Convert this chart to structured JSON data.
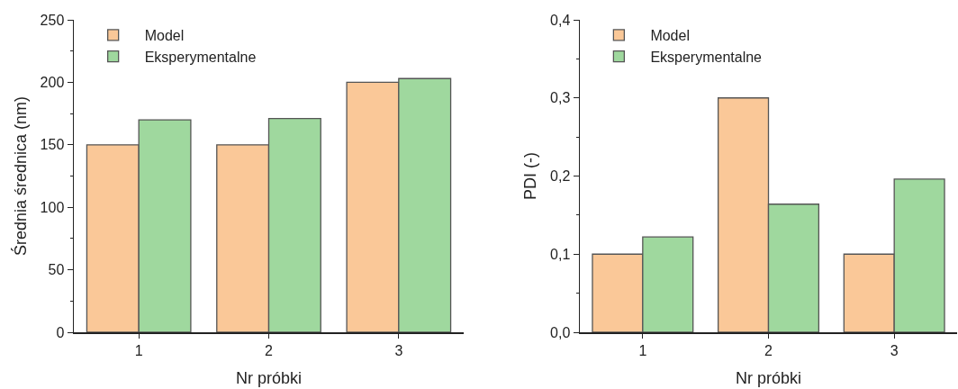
{
  "chart_data": [
    {
      "type": "bar",
      "xlabel": "Nr próbki",
      "ylabel": "Średnia średnica (nm)",
      "categories": [
        "1",
        "2",
        "3"
      ],
      "series": [
        {
          "name": "Model",
          "color": "#fac898",
          "values": [
            150,
            150,
            200
          ]
        },
        {
          "name": "Eksperymentalne",
          "color": "#9fd89e",
          "values": [
            170,
            171,
            203
          ]
        }
      ],
      "ylim": [
        0,
        250
      ],
      "yticks": [
        0,
        50,
        100,
        150,
        200,
        250
      ],
      "grid": false,
      "legend": "top left"
    },
    {
      "type": "bar",
      "xlabel": "Nr próbki",
      "ylabel": "PDI (-)",
      "categories": [
        "1",
        "2",
        "3"
      ],
      "series": [
        {
          "name": "Model",
          "color": "#fac898",
          "values": [
            0.1,
            0.3,
            0.1
          ]
        },
        {
          "name": "Eksperymentalne",
          "color": "#9fd89e",
          "values": [
            0.122,
            0.164,
            0.196
          ]
        }
      ],
      "ylim": [
        0,
        0.4
      ],
      "yticks": [
        {
          "value": 0,
          "label": "0,0"
        },
        {
          "value": 0.1,
          "label": "0,1"
        },
        {
          "value": 0.2,
          "label": "0,2"
        },
        {
          "value": 0.3,
          "label": "0,3"
        },
        {
          "value": 0.4,
          "label": "0,4"
        }
      ],
      "grid": false,
      "legend": "top left"
    }
  ]
}
